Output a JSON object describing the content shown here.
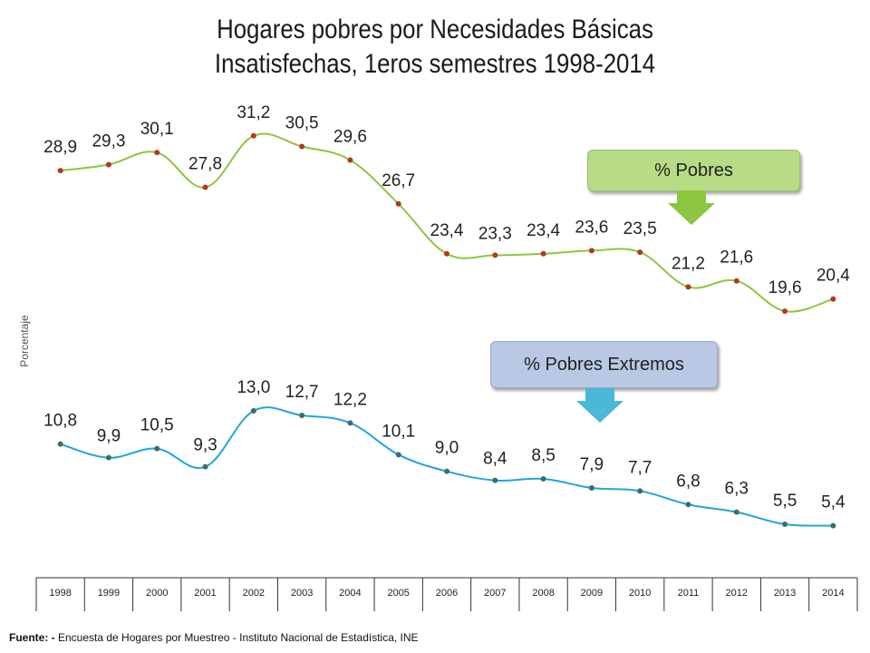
{
  "title_line1": "Hogares pobres por Necesidades Básicas",
  "title_line2": "Insatisfechas, 1eros semestres 1998-2014",
  "ylabel": "Porcentaje",
  "callouts": {
    "pobres": "% Pobres",
    "extremos": "% Pobres Extremos"
  },
  "source": {
    "prefix": "Fuente: -",
    "text": " Encuesta de Hogares por Muestreo   - Instituto Nacional de Estadística, INE"
  },
  "colors": {
    "pobres_line": "#8dc63f",
    "extremos_line": "#1ea7d9",
    "pobres_marker": "#b03a1e",
    "extremos_marker": "#3a6e6a",
    "callout_pobres_bg": "#b8dc86",
    "callout_ext_bg": "#b9c8e4",
    "arrow_pobres": "#8dc63f",
    "arrow_ext": "#4ab8d6"
  },
  "chart_data": {
    "type": "line",
    "title": "Hogares pobres por Necesidades Básicas Insatisfechas, 1eros semestres 1998-2014",
    "ylabel": "Porcentaje",
    "categories": [
      "1998",
      "1999",
      "2000",
      "2001",
      "2002",
      "2003",
      "2004",
      "2005",
      "2006",
      "2007",
      "2008",
      "2009",
      "2010",
      "2011",
      "2012",
      "2013",
      "2014"
    ],
    "series": [
      {
        "name": "% Pobres",
        "values": [
          28.9,
          29.3,
          30.1,
          27.8,
          31.2,
          30.5,
          29.6,
          26.7,
          23.4,
          23.3,
          23.4,
          23.6,
          23.5,
          21.2,
          21.6,
          19.6,
          20.4
        ],
        "labels": [
          "28,9",
          "29,3",
          "30,1",
          "27,8",
          "31,2",
          "30,5",
          "29,6",
          "26,7",
          "23,4",
          "23,3",
          "23,4",
          "23,6",
          "23,5",
          "21,2",
          "21,6",
          "19,6",
          "20,4"
        ]
      },
      {
        "name": "% Pobres Extremos",
        "values": [
          10.8,
          9.9,
          10.5,
          9.3,
          13.0,
          12.7,
          12.2,
          10.1,
          9.0,
          8.4,
          8.5,
          7.9,
          7.7,
          6.8,
          6.3,
          5.5,
          5.4
        ],
        "labels": [
          "10,8",
          "9,9",
          "10,5",
          "9,3",
          "13,0",
          "12,7",
          "12,2",
          "10,1",
          "9,0",
          "8,4",
          "8,5",
          "7,9",
          "7,7",
          "6,8",
          "6,3",
          "5,5",
          "5,4"
        ]
      }
    ],
    "grid": false,
    "legend": "callouts"
  }
}
